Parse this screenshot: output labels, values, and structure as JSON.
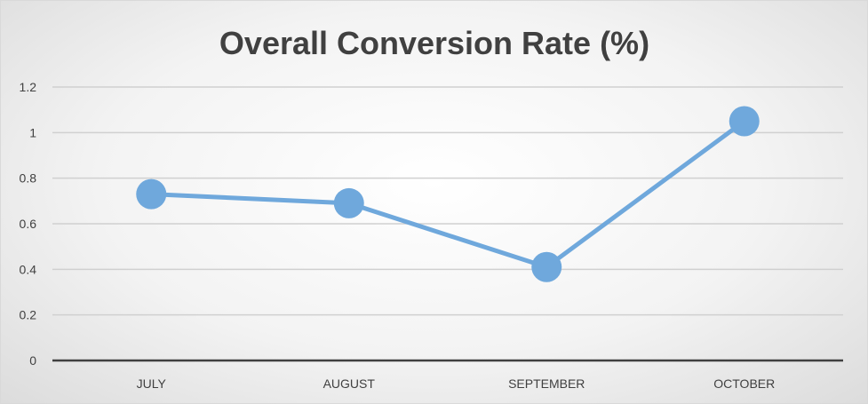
{
  "chart_data": {
    "type": "line",
    "title": "Overall Conversion Rate (%)",
    "xlabel": "",
    "ylabel": "",
    "categories": [
      "JULY",
      "AUGUST",
      "SEPTEMBER",
      "OCTOBER"
    ],
    "series": [
      {
        "values": [
          0.73,
          0.69,
          0.41,
          1.05
        ]
      }
    ],
    "ylim": [
      0,
      1.2
    ],
    "yticks": [
      "0",
      "0.2",
      "0.4",
      "0.6",
      "0.8",
      "1",
      "1.2"
    ],
    "grid": true,
    "legend": "none",
    "colors": {
      "series": "#6fa8dc",
      "grid": "#d0d0d0",
      "axis": "#404040",
      "text": "#404040"
    }
  }
}
